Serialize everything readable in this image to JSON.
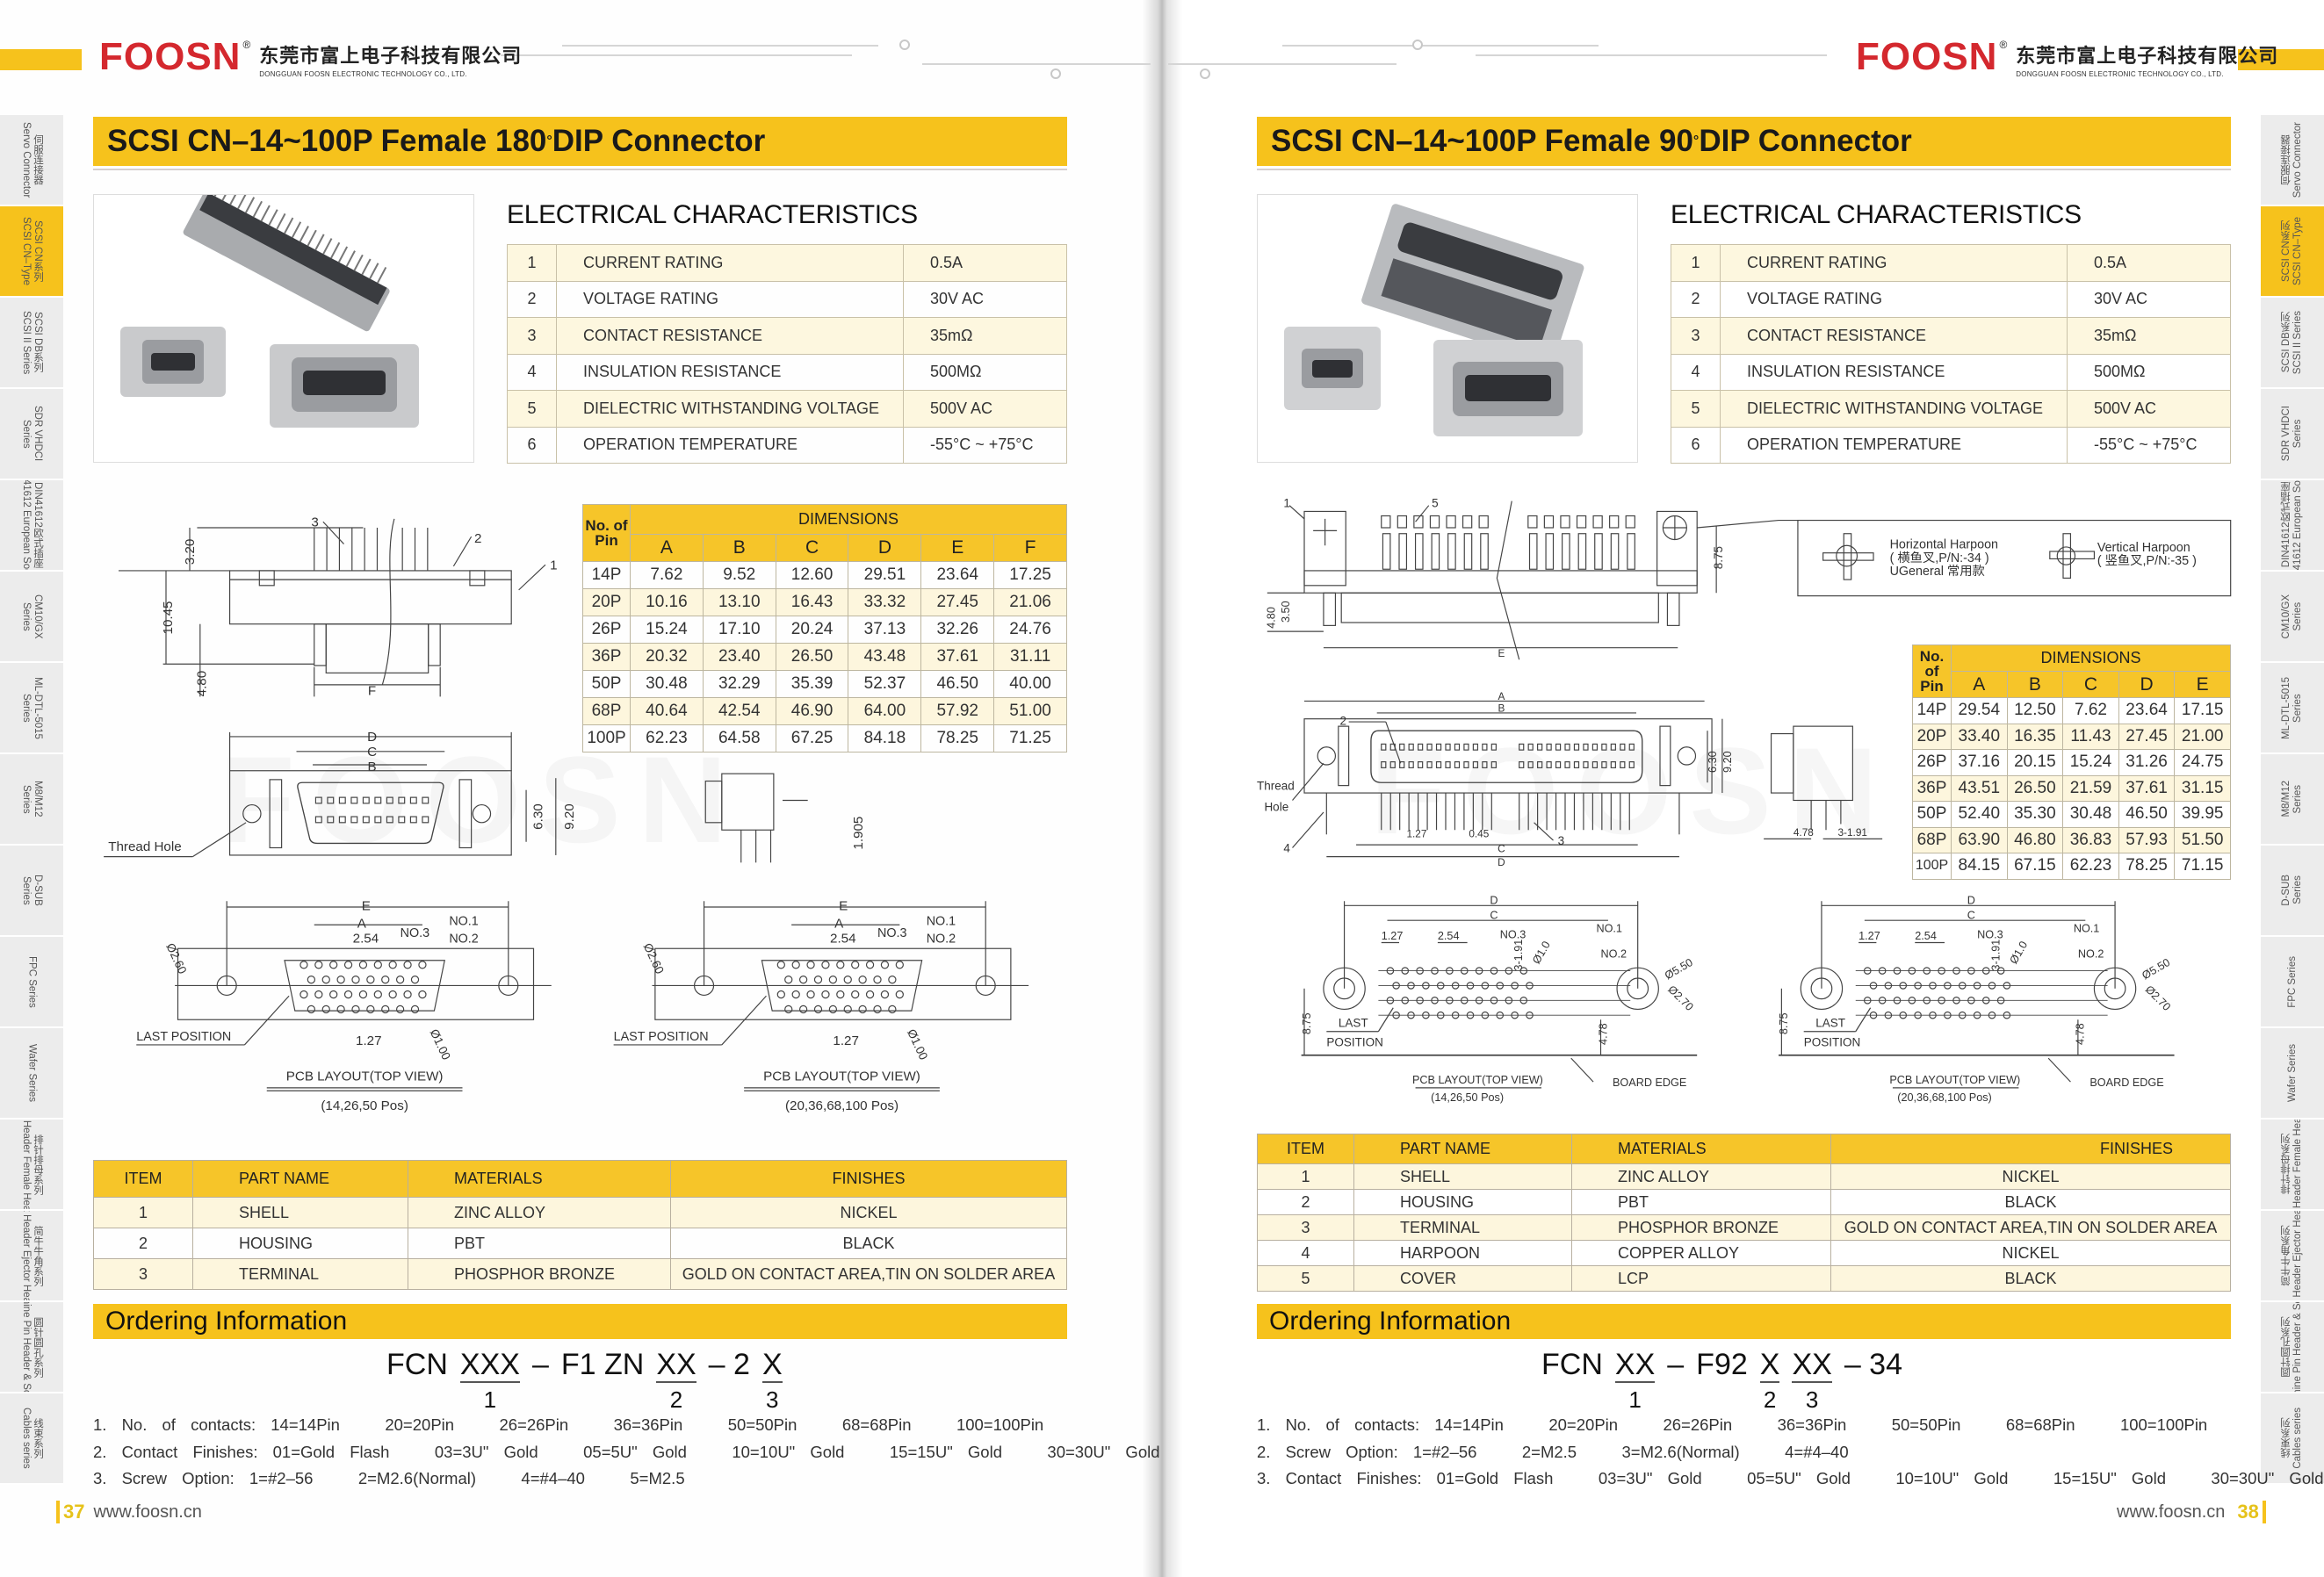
{
  "colors": {
    "accent": "#f6c21c",
    "table_header": "#f6c529",
    "row_alt": "#fdf6dd",
    "logo": "#d4282e"
  },
  "brand": {
    "logo": "FOOSN",
    "reg": "®",
    "company_cn": "东莞市富上电子科技有限公司",
    "company_en": "DONGGUAN FOOSN ELECTRONIC TECHNOLOGY CO., LTD."
  },
  "side_tabs": {
    "active_index": 1,
    "items": [
      {
        "cn": "伺服连接器",
        "en": "Servo Connector"
      },
      {
        "cn": "SCSI CN系列",
        "en": "SCSI CN–Type"
      },
      {
        "cn": "SCSI DB系列",
        "en": "SCSI II Series"
      },
      {
        "cn": "SDR VHDCI",
        "en": "Series"
      },
      {
        "cn": "DIN41612欧式插座",
        "en": "DIN41612 European Socket"
      },
      {
        "cn": "CM10/GX",
        "en": "Series"
      },
      {
        "cn": "ML-DTL-5015",
        "en": "Series"
      },
      {
        "cn": "M8/M12",
        "en": "Series"
      },
      {
        "cn": "D-SUB",
        "en": "Series"
      },
      {
        "cn": "FPC Series",
        "en": ""
      },
      {
        "cn": "Wafer Series",
        "en": ""
      },
      {
        "cn": "排针排母系列",
        "en": "Pin Header Female Header"
      },
      {
        "cn": "简牛牛角系列",
        "en": "Box Header Ejector Header"
      },
      {
        "cn": "圆针圆孔系列",
        "en": "Machine Pin Header & Socket"
      },
      {
        "cn": "线束系列",
        "en": "Cables series"
      }
    ]
  },
  "pages": [
    {
      "title": "SCSI CN–14~100P Female 180",
      "title_deg": "°",
      "title_tail": "DIP Connector",
      "electrical": {
        "heading": "ELECTRICAL CHARACTERISTICS",
        "rows": [
          [
            "1",
            "CURRENT RATING",
            "0.5A"
          ],
          [
            "2",
            "VOLTAGE RATING",
            "30V AC"
          ],
          [
            "3",
            "CONTACT RESISTANCE",
            "35mΩ"
          ],
          [
            "4",
            "INSULATION RESISTANCE",
            "500MΩ"
          ],
          [
            "5",
            "DIELECTRIC WITHSTANDING VOLTAGE",
            "500V AC"
          ],
          [
            "6",
            "OPERATION TEMPERATURE",
            "-55°C ~ +75°C"
          ]
        ]
      },
      "dimensions": {
        "pin_header": "No. of Pin",
        "group_header": "DIMENSIONS",
        "columns": [
          "A",
          "B",
          "C",
          "D",
          "E",
          "F"
        ],
        "rows": [
          [
            "14P",
            "7.62",
            "9.52",
            "12.60",
            "29.51",
            "23.64",
            "17.25"
          ],
          [
            "20P",
            "10.16",
            "13.10",
            "16.43",
            "33.32",
            "27.45",
            "21.06"
          ],
          [
            "26P",
            "15.24",
            "17.10",
            "20.24",
            "37.13",
            "32.26",
            "24.76"
          ],
          [
            "36P",
            "20.32",
            "23.40",
            "26.50",
            "43.48",
            "37.61",
            "31.11"
          ],
          [
            "50P",
            "30.48",
            "32.29",
            "35.39",
            "52.37",
            "46.50",
            "40.00"
          ],
          [
            "68P",
            "40.64",
            "42.54",
            "46.90",
            "64.00",
            "57.92",
            "51.00"
          ],
          [
            "100P",
            "62.23",
            "64.58",
            "67.25",
            "84.18",
            "78.25",
            "71.25"
          ]
        ]
      },
      "drawings": {
        "side_view": {
          "callouts": [
            "1",
            "2",
            "3"
          ],
          "dims": [
            "3.20",
            "10.45",
            "4.80",
            "F"
          ]
        },
        "front_view": {
          "dims": [
            "D",
            "C",
            "B",
            "6.30",
            "9.20"
          ],
          "thread_hole": "Thread Hole"
        },
        "side_small": {
          "dim": "1.905"
        },
        "pcb": [
          {
            "e": "E",
            "a": "A",
            "pitch": "2.54",
            "half": "1.27",
            "no1": "NO.1",
            "no2": "NO.2",
            "no3": "NO.3",
            "hole_big": "Ø2.60",
            "hole_small": "Ø1.00",
            "last": "LAST POSITION",
            "caption": "PCB LAYOUT(TOP VIEW)",
            "positions": "(14,26,50 Pos)"
          },
          {
            "e": "E",
            "a": "A",
            "pitch": "2.54",
            "half": "1.27",
            "no1": "NO.1",
            "no2": "NO.2",
            "no3": "NO.3",
            "hole_big": "Ø2.60",
            "hole_small": "Ø1.00",
            "last": "LAST POSITION",
            "caption": "PCB LAYOUT(TOP VIEW)",
            "positions": "(20,36,68,100 Pos)"
          }
        ]
      },
      "materials": {
        "headers": [
          "ITEM",
          "PART NAME",
          "MATERIALS",
          "FINISHES"
        ],
        "rows": [
          [
            "1",
            "SHELL",
            "ZINC ALLOY",
            "NICKEL"
          ],
          [
            "2",
            "HOUSING",
            "PBT",
            "BLACK"
          ],
          [
            "3",
            "TERMINAL",
            "PHOSPHOR BRONZE",
            "GOLD ON CONTACT AREA,TIN ON SOLDER AREA"
          ]
        ]
      },
      "ordering": {
        "heading": "Ordering Information",
        "code": [
          {
            "t": "FCN"
          },
          {
            "t": "XXX",
            "n": "1"
          },
          {
            "t": "–"
          },
          {
            "t": "F1 ZN"
          },
          {
            "t": "XX",
            "n": "2"
          },
          {
            "t": "– 2"
          },
          {
            "t": "X",
            "n": "3"
          }
        ],
        "notes": [
          "1. No. of contacts: 14=14Pin   20=20Pin   26=26Pin   36=36Pin   50=50Pin   68=68Pin   100=100Pin",
          "2. Contact Finishes: 01=Gold Flash   03=3U\" Gold   05=5U\" Gold   10=10U\" Gold   15=15U\" Gold   30=30U\" Gold",
          "3. Screw Option: 1=#2–56   2=M2.6(Normal)   4=#4–40   5=M2.5"
        ]
      },
      "footer": {
        "page": "37",
        "url": "www.foosn.cn"
      }
    },
    {
      "title": "SCSI CN–14~100P Female 90",
      "title_deg": "°",
      "title_tail": "DIP Connector",
      "electrical": {
        "heading": "ELECTRICAL CHARACTERISTICS",
        "rows": [
          [
            "1",
            "CURRENT RATING",
            "0.5A"
          ],
          [
            "2",
            "VOLTAGE RATING",
            "30V AC"
          ],
          [
            "3",
            "CONTACT RESISTANCE",
            "35mΩ"
          ],
          [
            "4",
            "INSULATION RESISTANCE",
            "500MΩ"
          ],
          [
            "5",
            "DIELECTRIC WITHSTANDING VOLTAGE",
            "500V AC"
          ],
          [
            "6",
            "OPERATION TEMPERATURE",
            "-55°C ~ +75°C"
          ]
        ]
      },
      "dimensions": {
        "pin_header": "No. of Pin",
        "group_header": "DIMENSIONS",
        "columns": [
          "A",
          "B",
          "C",
          "D",
          "E"
        ],
        "rows": [
          [
            "14P",
            "29.54",
            "12.50",
            "7.62",
            "23.64",
            "17.15"
          ],
          [
            "20P",
            "33.40",
            "16.35",
            "11.43",
            "27.45",
            "21.00"
          ],
          [
            "26P",
            "37.16",
            "20.15",
            "15.24",
            "31.26",
            "24.75"
          ],
          [
            "36P",
            "43.51",
            "26.50",
            "21.59",
            "37.61",
            "31.15"
          ],
          [
            "50P",
            "52.40",
            "35.30",
            "30.48",
            "46.50",
            "39.95"
          ],
          [
            "68P",
            "63.90",
            "46.80",
            "36.83",
            "57.93",
            "51.50"
          ],
          [
            "100P",
            "84.15",
            "67.15",
            "62.23",
            "78.25",
            "71.15"
          ]
        ]
      },
      "drawings": {
        "side_view": {
          "callouts": [
            "1",
            "5"
          ],
          "dims": [
            "8.75",
            "4.80",
            "3.50",
            "E"
          ]
        },
        "harpoon": {
          "horizontal": "Horizontal Harpoon",
          "horizontal_pn": "( 横鱼叉,P/N:-34 )",
          "general": "UGeneral 常用款",
          "vertical": "Vertical Harpoon",
          "vertical_pn": "( 竖鱼叉,P/N:-35 )"
        },
        "front_view": {
          "dims": [
            "A",
            "B",
            "C",
            "D",
            "6.30",
            "9.20",
            "1.27",
            "0.45"
          ],
          "callouts": [
            "2",
            "3",
            "4"
          ],
          "thread": "Thread",
          "hole": "Hole"
        },
        "side_small": {
          "dims": [
            "4.78",
            "3-1.91"
          ]
        },
        "pcb": [
          {
            "d": "D",
            "c": "C",
            "half": "1.27",
            "pitch": "2.54",
            "row": "3-1.91",
            "no1": "NO.1",
            "no2": "NO.2",
            "no3": "NO.3",
            "hole": "Ø1.0",
            "ring_outer": "Ø5.50",
            "ring_inner": "Ø2.70",
            "height": "8.75",
            "edge": "4.78",
            "last": "LAST",
            "position": "POSITION",
            "caption": "PCB LAYOUT(TOP VIEW)",
            "positions": "(14,26,50 Pos)",
            "board_edge": "BOARD EDGE"
          },
          {
            "d": "D",
            "c": "C",
            "half": "1.27",
            "pitch": "2.54",
            "row": "3-1.91",
            "no1": "NO.1",
            "no2": "NO.2",
            "no3": "NO.3",
            "hole": "Ø1.0",
            "ring_outer": "Ø5.50",
            "ring_inner": "Ø2.70",
            "height": "8.75",
            "edge": "4.78",
            "last": "LAST",
            "position": "POSITION",
            "caption": "PCB LAYOUT(TOP VIEW)",
            "positions": "(20,36,68,100 Pos)",
            "board_edge": "BOARD EDGE"
          }
        ]
      },
      "materials": {
        "headers": [
          "ITEM",
          "PART NAME",
          "MATERIALS",
          "FINISHES"
        ],
        "rows": [
          [
            "1",
            "SHELL",
            "ZINC ALLOY",
            "NICKEL"
          ],
          [
            "2",
            "HOUSING",
            "PBT",
            "BLACK"
          ],
          [
            "3",
            "TERMINAL",
            "PHOSPHOR BRONZE",
            "GOLD ON CONTACT AREA,TIN ON SOLDER AREA"
          ],
          [
            "4",
            "HARPOON",
            "COPPER ALLOY",
            "NICKEL"
          ],
          [
            "5",
            "COVER",
            "LCP",
            "BLACK"
          ]
        ]
      },
      "ordering": {
        "heading": "Ordering Information",
        "code": [
          {
            "t": "FCN"
          },
          {
            "t": "XX",
            "n": "1"
          },
          {
            "t": "–"
          },
          {
            "t": "F92"
          },
          {
            "t": "X",
            "n": "2"
          },
          {
            "t": "XX",
            "n": "3"
          },
          {
            "t": "– 34"
          }
        ],
        "notes": [
          "1. No. of contacts: 14=14Pin   20=20Pin   26=26Pin   36=36Pin   50=50Pin   68=68Pin   100=100Pin",
          "2. Screw Option: 1=#2–56   2=M2.5   3=M2.6(Normal)   4=#4–40",
          "3. Contact Finishes: 01=Gold Flash   03=3U\" Gold   05=5U\" Gold   10=10U\" Gold   15=15U\" Gold   30=30U\" Gold"
        ]
      },
      "footer": {
        "page": "38",
        "url": "www.foosn.cn"
      }
    }
  ]
}
